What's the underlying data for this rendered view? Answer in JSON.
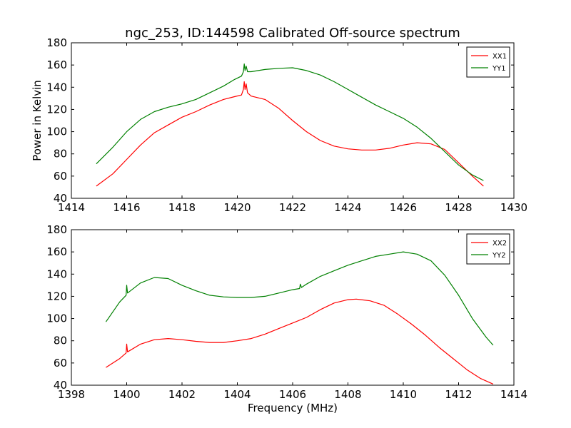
{
  "chart_data": [
    {
      "type": "line",
      "title": "ngc_253, ID:144598 Calibrated Off-source spectrum",
      "xlabel": "",
      "ylabel": "Power in Kelvin",
      "xlim": [
        1414,
        1430
      ],
      "ylim": [
        40,
        180
      ],
      "xticks": [
        "1414",
        "1416",
        "1418",
        "1420",
        "1422",
        "1424",
        "1426",
        "1428",
        "1430"
      ],
      "yticks": [
        "40",
        "60",
        "80",
        "100",
        "120",
        "140",
        "160",
        "180"
      ],
      "legend_position": "top-right",
      "grid": false,
      "series": [
        {
          "name": "XX1",
          "color": "#ff0000",
          "points": [
            [
              1414.9,
              51
            ],
            [
              1415.5,
              62
            ],
            [
              1416,
              75
            ],
            [
              1416.5,
              88
            ],
            [
              1417,
              99
            ],
            [
              1417.5,
              106
            ],
            [
              1418,
              113
            ],
            [
              1418.5,
              118
            ],
            [
              1419,
              124
            ],
            [
              1419.5,
              129
            ],
            [
              1419.9,
              131.5
            ],
            [
              1420.15,
              133
            ],
            [
              1420.22,
              138
            ],
            [
              1420.25,
              145
            ],
            [
              1420.28,
              138
            ],
            [
              1420.32,
              143
            ],
            [
              1420.37,
              135
            ],
            [
              1420.5,
              132
            ],
            [
              1421,
              129
            ],
            [
              1421.5,
              121
            ],
            [
              1422,
              110
            ],
            [
              1422.5,
              100
            ],
            [
              1423,
              92
            ],
            [
              1423.5,
              87
            ],
            [
              1424,
              84.5
            ],
            [
              1424.5,
              83.5
            ],
            [
              1425,
              83.5
            ],
            [
              1425.5,
              85
            ],
            [
              1426,
              88
            ],
            [
              1426.5,
              90
            ],
            [
              1427,
              89
            ],
            [
              1427.5,
              84
            ],
            [
              1428,
              72
            ],
            [
              1428.5,
              60
            ],
            [
              1428.9,
              51
            ]
          ]
        },
        {
          "name": "YY1",
          "color": "#008000",
          "points": [
            [
              1414.9,
              71
            ],
            [
              1415.5,
              86
            ],
            [
              1416,
              100
            ],
            [
              1416.5,
              111
            ],
            [
              1417,
              118
            ],
            [
              1417.5,
              122
            ],
            [
              1418,
              125
            ],
            [
              1418.5,
              129
            ],
            [
              1419,
              135
            ],
            [
              1419.5,
              141
            ],
            [
              1419.9,
              147
            ],
            [
              1420.15,
              150
            ],
            [
              1420.22,
              154
            ],
            [
              1420.25,
              161
            ],
            [
              1420.28,
              155
            ],
            [
              1420.32,
              159
            ],
            [
              1420.37,
              154
            ],
            [
              1420.5,
              154
            ],
            [
              1421,
              156
            ],
            [
              1421.5,
              157
            ],
            [
              1422,
              157.5
            ],
            [
              1422.5,
              155
            ],
            [
              1423,
              151
            ],
            [
              1423.5,
              145
            ],
            [
              1424,
              138
            ],
            [
              1424.5,
              131
            ],
            [
              1425,
              124
            ],
            [
              1425.5,
              118
            ],
            [
              1426,
              112
            ],
            [
              1426.5,
              104
            ],
            [
              1427,
              94
            ],
            [
              1427.5,
              82
            ],
            [
              1428,
              70
            ],
            [
              1428.5,
              61
            ],
            [
              1428.9,
              56
            ]
          ]
        }
      ]
    },
    {
      "type": "line",
      "title": "",
      "xlabel": "Frequency (MHz)",
      "ylabel": "",
      "xlim": [
        1398,
        1414
      ],
      "ylim": [
        40,
        180
      ],
      "xticks": [
        "1398",
        "1400",
        "1402",
        "1404",
        "1406",
        "1408",
        "1410",
        "1412",
        "1414"
      ],
      "yticks": [
        "40",
        "60",
        "80",
        "100",
        "120",
        "140",
        "160",
        "180"
      ],
      "legend_position": "top-right",
      "grid": false,
      "series": [
        {
          "name": "XX2",
          "color": "#ff0000",
          "points": [
            [
              1399.25,
              56
            ],
            [
              1399.5,
              60
            ],
            [
              1399.75,
              64
            ],
            [
              1399.98,
              69
            ],
            [
              1400.0,
              77
            ],
            [
              1400.03,
              70
            ],
            [
              1400.5,
              77
            ],
            [
              1401,
              81
            ],
            [
              1401.5,
              82
            ],
            [
              1402,
              81
            ],
            [
              1402.5,
              79.5
            ],
            [
              1403,
              78.5
            ],
            [
              1403.5,
              78.5
            ],
            [
              1404,
              80
            ],
            [
              1404.5,
              82
            ],
            [
              1405,
              86
            ],
            [
              1405.5,
              91
            ],
            [
              1406,
              96
            ],
            [
              1406.5,
              101
            ],
            [
              1407,
              108
            ],
            [
              1407.5,
              114
            ],
            [
              1408,
              117
            ],
            [
              1408.3,
              117.5
            ],
            [
              1408.8,
              116
            ],
            [
              1409.3,
              112
            ],
            [
              1409.8,
              104
            ],
            [
              1410.3,
              95
            ],
            [
              1410.8,
              85
            ],
            [
              1411.3,
              74
            ],
            [
              1411.8,
              64
            ],
            [
              1412.3,
              54
            ],
            [
              1412.8,
              46
            ],
            [
              1413.25,
              41
            ]
          ]
        },
        {
          "name": "YY2",
          "color": "#008000",
          "points": [
            [
              1399.25,
              97
            ],
            [
              1399.5,
              106
            ],
            [
              1399.75,
              115
            ],
            [
              1399.98,
              121
            ],
            [
              1400.0,
              130
            ],
            [
              1400.03,
              123
            ],
            [
              1400.5,
              132
            ],
            [
              1401,
              137
            ],
            [
              1401.5,
              136
            ],
            [
              1402,
              130
            ],
            [
              1402.5,
              125
            ],
            [
              1403,
              121
            ],
            [
              1403.5,
              119.5
            ],
            [
              1404,
              119
            ],
            [
              1404.5,
              119
            ],
            [
              1405,
              120
            ],
            [
              1405.5,
              123
            ],
            [
              1406,
              126
            ],
            [
              1406.25,
              127
            ],
            [
              1406.28,
              131
            ],
            [
              1406.32,
              128
            ],
            [
              1406.5,
              131
            ],
            [
              1407,
              138
            ],
            [
              1407.5,
              143
            ],
            [
              1408,
              148
            ],
            [
              1408.5,
              152
            ],
            [
              1409,
              156
            ],
            [
              1409.5,
              158
            ],
            [
              1410,
              160
            ],
            [
              1410.5,
              158
            ],
            [
              1411,
              152
            ],
            [
              1411.5,
              139
            ],
            [
              1412,
              121
            ],
            [
              1412.5,
              100
            ],
            [
              1413,
              83
            ],
            [
              1413.25,
              76
            ]
          ]
        }
      ]
    }
  ]
}
